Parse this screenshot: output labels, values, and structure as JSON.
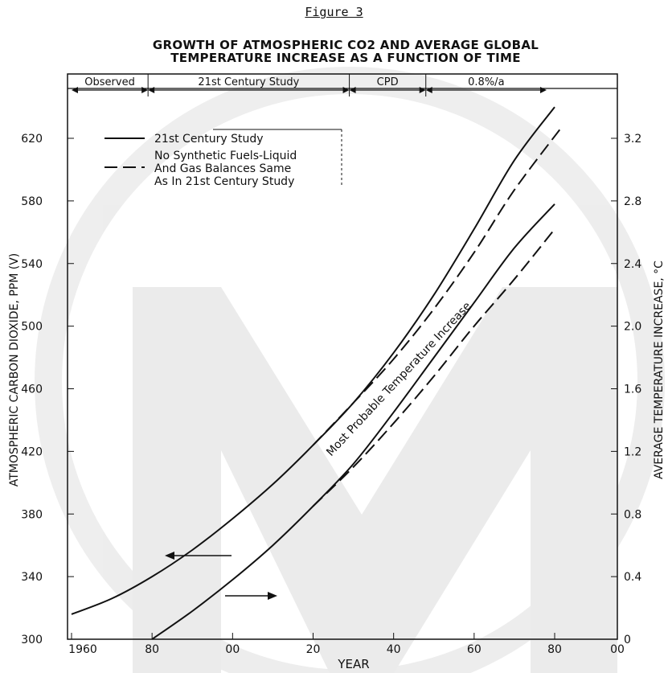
{
  "figure_label": "Figure 3",
  "title_line1": "GROWTH OF ATMOSPHERIC CO2 AND AVERAGE GLOBAL",
  "title_line2": "TEMPERATURE INCREASE AS A FUNCTION OF TIME",
  "chart_data": {
    "type": "line",
    "xlabel": "YEAR",
    "ylabel_left": "ATMOSPHERIC CARBON DIOXIDE, PPM (V)",
    "ylabel_right": "AVERAGE TEMPERATURE INCREASE, °C",
    "xlim": [
      1960,
      2100
    ],
    "ylim_left": [
      300,
      650
    ],
    "ylim_right": [
      0,
      3.5
    ],
    "x_tick_values": [
      1960,
      1980,
      2000,
      2020,
      2040,
      2060,
      2080,
      2100
    ],
    "x_tick_labels": [
      "1960",
      "80",
      "00",
      "20",
      "40",
      "60",
      "80",
      "00"
    ],
    "y_left_ticks": [
      300,
      340,
      380,
      420,
      460,
      500,
      540,
      580,
      620
    ],
    "y_right_ticks": [
      "0",
      "0.4",
      "0.8",
      "1.2",
      "1.6",
      "2.0",
      "2.4",
      "2.8",
      "3.2"
    ],
    "y_right_tick_values": [
      0,
      0.4,
      0.8,
      1.2,
      1.6,
      2.0,
      2.4,
      2.8,
      3.2
    ],
    "periods": [
      {
        "label": "Observed",
        "from": 1960,
        "to": 1979
      },
      {
        "label": "21st Century Study",
        "from": 1979,
        "to": 2029
      },
      {
        "label": "CPD",
        "from": 2029,
        "to": 2048
      },
      {
        "label": "0.8%/a",
        "from": 2048,
        "to": 2078
      }
    ],
    "legend": [
      {
        "style": "solid",
        "label_lines": [
          "21st Century Study"
        ]
      },
      {
        "style": "dashed",
        "label_lines": [
          "No Synthetic Fuels-Liquid",
          "And Gas Balances Same",
          "As In 21st Century Study"
        ]
      }
    ],
    "annotation": "Most Probable Temperature Increase",
    "series": [
      {
        "name": "21st Century Study",
        "axis": "left",
        "style": "solid",
        "x": [
          1960,
          1970,
          1980,
          1990,
          2000,
          2010,
          2020,
          2030,
          2040,
          2050,
          2060,
          2070,
          2080
        ],
        "y": [
          316,
          326,
          340,
          357,
          377,
          399,
          424,
          451,
          483,
          520,
          562,
          606,
          640
        ]
      },
      {
        "name": "No Synthetic Fuels-Liquid And Gas Balances Same As In 21st Century Study",
        "axis": "left",
        "style": "dashed",
        "x": [
          2020,
          2030,
          2040,
          2050,
          2060,
          2070,
          2082
        ],
        "y": [
          424,
          451,
          479,
          511,
          547,
          587,
          628
        ]
      },
      {
        "name": "21st Century Study",
        "axis": "right",
        "style": "solid",
        "x": [
          1980,
          1990,
          2000,
          2010,
          2020,
          2030,
          2040,
          2050,
          2060,
          2070,
          2080
        ],
        "y": [
          0.0,
          0.18,
          0.38,
          0.6,
          0.85,
          1.12,
          1.45,
          1.8,
          2.15,
          2.5,
          2.78
        ]
      },
      {
        "name": "No Synthetic Fuels-Liquid And Gas Balances Same As In 21st Century Study",
        "axis": "right",
        "style": "dashed",
        "x": [
          2020,
          2030,
          2040,
          2050,
          2060,
          2070,
          2080
        ],
        "y": [
          0.85,
          1.1,
          1.38,
          1.68,
          2.0,
          2.3,
          2.62
        ]
      }
    ]
  }
}
